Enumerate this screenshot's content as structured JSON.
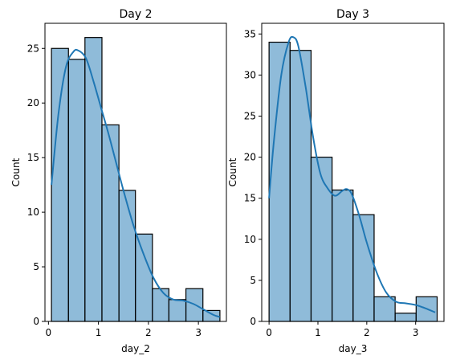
{
  "chart_data": [
    {
      "type": "bar",
      "subtype": "histogram-with-kde",
      "title": "Day 2",
      "xlabel": "day_2",
      "ylabel": "Count",
      "xlim": [
        -0.07,
        3.56
      ],
      "ylim": [
        0,
        27.3
      ],
      "xticks": [
        0,
        1,
        2,
        3
      ],
      "yticks": [
        0,
        5,
        10,
        15,
        20,
        25
      ],
      "bin_edges": [
        0.06,
        0.4,
        0.73,
        1.07,
        1.41,
        1.74,
        2.08,
        2.41,
        2.75,
        3.09,
        3.43
      ],
      "values": [
        25,
        24,
        26,
        18,
        12,
        8,
        3,
        2,
        3,
        1
      ],
      "kde": {
        "x": [
          0.06,
          0.2,
          0.35,
          0.5,
          0.6,
          0.75,
          0.9,
          1.05,
          1.2,
          1.35,
          1.5,
          1.7,
          1.9,
          2.1,
          2.3,
          2.5,
          2.7,
          2.9,
          3.1,
          3.3,
          3.43
        ],
        "y": [
          12.5,
          19.0,
          23.3,
          24.7,
          24.8,
          24.1,
          22.0,
          19.6,
          17.2,
          14.6,
          12.0,
          8.8,
          6.2,
          4.0,
          2.6,
          2.0,
          1.9,
          1.6,
          1.1,
          0.6,
          0.4
        ]
      },
      "color": "#1f77b4"
    },
    {
      "type": "bar",
      "subtype": "histogram-with-kde",
      "title": "Day 3",
      "xlabel": "day_3",
      "ylabel": "Count",
      "xlim": [
        -0.15,
        3.58
      ],
      "ylim": [
        0,
        36.3
      ],
      "xticks": [
        0,
        1,
        2,
        3
      ],
      "yticks": [
        0,
        5,
        10,
        15,
        20,
        25,
        30,
        35
      ],
      "bin_edges": [
        0.0,
        0.43,
        0.86,
        1.29,
        1.72,
        2.15,
        2.58,
        3.01,
        3.44
      ],
      "values": [
        34,
        33,
        20,
        16,
        13,
        3,
        1,
        3
      ],
      "kde": {
        "x": [
          0.0,
          0.1,
          0.25,
          0.4,
          0.5,
          0.6,
          0.75,
          0.9,
          1.05,
          1.2,
          1.35,
          1.5,
          1.6,
          1.7,
          1.85,
          2.0,
          2.2,
          2.4,
          2.6,
          2.8,
          3.0,
          3.2,
          3.4
        ],
        "y": [
          15.0,
          22.0,
          30.0,
          34.0,
          34.6,
          33.5,
          28.5,
          22.5,
          18.0,
          16.2,
          15.3,
          15.9,
          16.1,
          15.4,
          12.8,
          9.6,
          6.0,
          3.5,
          2.4,
          2.2,
          2.0,
          1.6,
          1.1
        ]
      },
      "color": "#1f77b4"
    }
  ]
}
